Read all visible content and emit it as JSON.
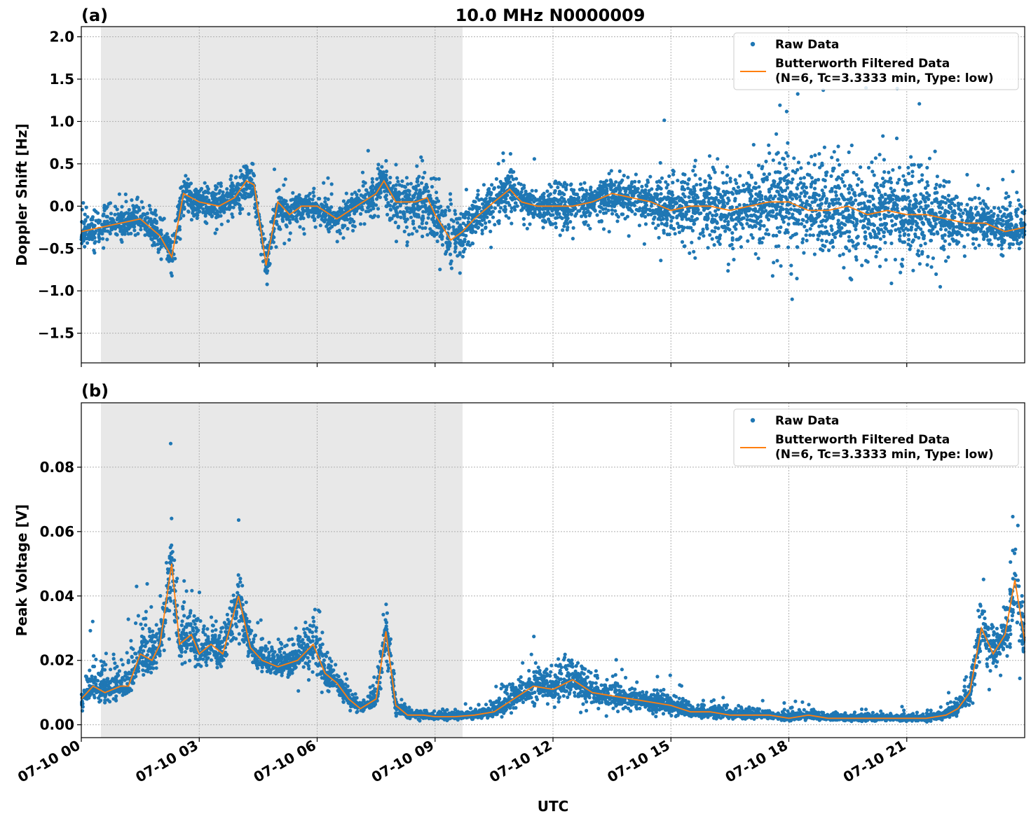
{
  "figure": {
    "title": "10.0 MHz N0000009",
    "xlabel": "UTC",
    "x_ticks": [
      "07-10 00",
      "07-10 03",
      "07-10 06",
      "07-10 09",
      "07-10 12",
      "07-10 15",
      "07-10 18",
      "07-10 21"
    ],
    "x_tick_hours": [
      0,
      3,
      6,
      9,
      12,
      15,
      18,
      21
    ],
    "xlim_hours": [
      0,
      24
    ],
    "shaded_region_hours": [
      0.5,
      9.7
    ],
    "colors": {
      "raw": "#1f77b4",
      "filtered": "#ff7f0e",
      "shade": "#e8e8e8"
    }
  },
  "chart_data": [
    {
      "type": "scatter",
      "panel_label": "(a)",
      "ylabel": "Doppler Shift [Hz]",
      "ylim": [
        -1.85,
        2.12
      ],
      "y_ticks": [
        2.0,
        1.5,
        1.0,
        0.5,
        0.0,
        -0.5,
        -1.0,
        -1.5
      ],
      "y_tick_labels": [
        "2.0",
        "1.5",
        "1.0",
        "0.5",
        "0.0",
        "−0.5",
        "−1.0",
        "−1.5"
      ],
      "grid": true,
      "legend": {
        "placement": "top-right",
        "raw_label": "Raw Data",
        "filtered_label_line1": "Butterworth Filtered Data",
        "filtered_label_line2": "(N=6, Tc=3.3333 min, Type: low)"
      },
      "series": [
        {
          "name": "Butterworth Filtered Data",
          "x_hours": [
            0,
            0.5,
            1,
            1.5,
            2,
            2.3,
            2.6,
            3,
            3.5,
            3.9,
            4.2,
            4.4,
            4.7,
            5,
            5.3,
            5.6,
            6,
            6.5,
            7,
            7.5,
            7.7,
            8,
            8.5,
            8.8,
            9,
            9.4,
            9.7,
            10,
            10.5,
            10.9,
            11.2,
            11.6,
            12,
            12.5,
            13,
            13.5,
            14,
            14.5,
            15,
            15.5,
            16,
            16.5,
            17,
            17.5,
            18,
            18.5,
            19,
            19.5,
            20,
            20.5,
            21,
            21.5,
            22,
            22.5,
            23,
            23.5,
            24
          ],
          "y": [
            -0.3,
            -0.25,
            -0.2,
            -0.15,
            -0.35,
            -0.6,
            0.15,
            0.05,
            0.0,
            0.1,
            0.3,
            0.25,
            -0.7,
            0.05,
            -0.1,
            0.0,
            0.0,
            -0.15,
            0.0,
            0.15,
            0.3,
            0.05,
            0.05,
            0.1,
            -0.1,
            -0.4,
            -0.3,
            -0.15,
            0.05,
            0.2,
            0.05,
            0.0,
            0.0,
            0.0,
            0.05,
            0.15,
            0.1,
            0.05,
            -0.05,
            0.0,
            0.0,
            -0.05,
            0.0,
            0.05,
            0.05,
            -0.05,
            -0.05,
            0.0,
            -0.1,
            -0.05,
            -0.1,
            -0.1,
            -0.15,
            -0.2,
            -0.2,
            -0.3,
            -0.25
          ]
        },
        {
          "name": "Raw Data",
          "x_hours": [
            0,
            0.5,
            1,
            1.5,
            2,
            2.3,
            2.6,
            3,
            3.5,
            3.9,
            4.2,
            4.4,
            4.7,
            5,
            5.3,
            5.6,
            6,
            6.5,
            7,
            7.5,
            7.7,
            8,
            8.5,
            8.8,
            9,
            9.4,
            9.7,
            10,
            10.5,
            10.9,
            11.2,
            11.6,
            12,
            12.5,
            13,
            13.5,
            14,
            14.5,
            15,
            15.5,
            16,
            16.5,
            17,
            17.5,
            18,
            18.5,
            19,
            19.5,
            20,
            20.5,
            21,
            21.5,
            22,
            22.5,
            23,
            23.5,
            24
          ],
          "y_min": [
            -0.7,
            -0.6,
            -0.5,
            -0.5,
            -0.8,
            -1.1,
            -0.4,
            -0.45,
            -0.4,
            -0.3,
            -0.2,
            -0.3,
            -1.2,
            -0.5,
            -0.5,
            -0.5,
            -0.4,
            -0.55,
            -0.5,
            -0.4,
            -0.3,
            -0.8,
            -0.8,
            -0.8,
            -0.9,
            -0.95,
            -0.9,
            -0.7,
            -0.5,
            -0.35,
            -0.4,
            -0.4,
            -0.5,
            -0.5,
            -0.4,
            -0.4,
            -0.5,
            -0.5,
            -0.9,
            -1.0,
            -1.0,
            -1.0,
            -1.0,
            -1.1,
            -1.2,
            -1.1,
            -1.1,
            -1.1,
            -1.2,
            -1.2,
            -1.3,
            -1.2,
            -0.9,
            -0.8,
            -0.7,
            -0.7,
            -0.6
          ],
          "y_max": [
            0.3,
            0.2,
            0.25,
            0.3,
            0.2,
            -0.1,
            0.6,
            0.5,
            0.45,
            0.65,
            0.9,
            0.8,
            -0.2,
            0.5,
            0.35,
            0.3,
            0.3,
            0.2,
            0.4,
            0.6,
            0.8,
            0.8,
            0.85,
            0.9,
            0.7,
            0.3,
            0.4,
            0.4,
            0.55,
            0.7,
            0.5,
            0.45,
            0.45,
            0.5,
            0.5,
            0.65,
            0.6,
            0.6,
            0.9,
            1.0,
            1.0,
            1.0,
            1.0,
            1.1,
            1.3,
            1.2,
            1.2,
            1.2,
            1.1,
            1.1,
            1.1,
            1.0,
            0.8,
            0.6,
            0.5,
            0.4,
            0.3
          ]
        }
      ]
    },
    {
      "type": "scatter",
      "panel_label": "(b)",
      "ylabel": "Peak Voltage [V]",
      "ylim": [
        -0.004,
        0.1
      ],
      "y_ticks": [
        0.08,
        0.06,
        0.04,
        0.02,
        0.0
      ],
      "y_tick_labels": [
        "0.08",
        "0.06",
        "0.04",
        "0.02",
        "0.00"
      ],
      "grid": true,
      "legend": {
        "placement": "top-right",
        "raw_label": "Raw Data",
        "filtered_label_line1": "Butterworth Filtered Data",
        "filtered_label_line2": "(N=6, Tc=3.3333 min, Type: low)"
      },
      "series": [
        {
          "name": "Butterworth Filtered Data",
          "x_hours": [
            0,
            0.3,
            0.6,
            1,
            1.2,
            1.5,
            1.8,
            2,
            2.3,
            2.5,
            2.8,
            3,
            3.3,
            3.6,
            4,
            4.3,
            4.6,
            5,
            5.5,
            5.9,
            6.2,
            6.5,
            6.8,
            7.1,
            7.5,
            7.75,
            8,
            8.3,
            8.7,
            9,
            9.5,
            10,
            10.5,
            11,
            11.5,
            12,
            12.5,
            13,
            13.5,
            14,
            14.5,
            15,
            15.5,
            16,
            16.5,
            17,
            17.5,
            18,
            18.5,
            19,
            19.5,
            20,
            20.5,
            21,
            21.5,
            22,
            22.3,
            22.6,
            22.9,
            23.2,
            23.5,
            23.75,
            24
          ],
          "y": [
            0.008,
            0.012,
            0.01,
            0.012,
            0.012,
            0.022,
            0.02,
            0.025,
            0.05,
            0.025,
            0.028,
            0.022,
            0.025,
            0.022,
            0.04,
            0.024,
            0.02,
            0.018,
            0.02,
            0.025,
            0.016,
            0.013,
            0.008,
            0.005,
            0.008,
            0.029,
            0.006,
            0.003,
            0.003,
            0.0025,
            0.0025,
            0.003,
            0.004,
            0.008,
            0.012,
            0.011,
            0.014,
            0.01,
            0.009,
            0.008,
            0.007,
            0.006,
            0.004,
            0.004,
            0.003,
            0.003,
            0.003,
            0.002,
            0.003,
            0.002,
            0.002,
            0.002,
            0.002,
            0.002,
            0.002,
            0.003,
            0.005,
            0.01,
            0.03,
            0.022,
            0.028,
            0.045,
            0.026
          ]
        },
        {
          "name": "Raw Data",
          "x_hours": [
            0,
            0.3,
            0.6,
            1,
            1.2,
            1.5,
            1.8,
            2,
            2.3,
            2.5,
            2.8,
            3,
            3.3,
            3.6,
            4,
            4.3,
            4.6,
            5,
            5.5,
            5.9,
            6.2,
            6.5,
            6.8,
            7.1,
            7.5,
            7.75,
            8,
            8.3,
            8.7,
            9,
            9.5,
            10,
            10.5,
            11,
            11.5,
            12,
            12.5,
            13,
            13.5,
            14,
            14.5,
            15,
            15.5,
            16,
            16.5,
            17,
            17.5,
            18,
            18.5,
            19,
            19.5,
            20,
            20.5,
            21,
            21.5,
            22,
            22.3,
            22.6,
            22.9,
            23.2,
            23.5,
            23.75,
            24
          ],
          "y_min": [
            0.002,
            0.004,
            0.003,
            0.005,
            0.005,
            0.01,
            0.01,
            0.012,
            0.015,
            0.014,
            0.015,
            0.014,
            0.014,
            0.013,
            0.018,
            0.014,
            0.011,
            0.01,
            0.01,
            0.011,
            0.008,
            0.006,
            0.003,
            0.002,
            0.003,
            0.01,
            0.001,
            0.001,
            0.001,
            0.001,
            0.001,
            0.001,
            0.001,
            0.002,
            0.004,
            0.004,
            0.004,
            0.003,
            0.002,
            0.002,
            0.002,
            0.001,
            0.001,
            0.001,
            0.001,
            0.001,
            0.001,
            0.0005,
            0.001,
            0.0005,
            0.0005,
            0.0005,
            0.0005,
            0.0005,
            0.0005,
            0.001,
            0.002,
            0.004,
            0.01,
            0.008,
            0.01,
            0.015,
            0.01
          ],
          "y_max": [
            0.016,
            0.03,
            0.025,
            0.035,
            0.04,
            0.05,
            0.045,
            0.045,
            0.085,
            0.05,
            0.05,
            0.045,
            0.045,
            0.04,
            0.058,
            0.04,
            0.035,
            0.032,
            0.035,
            0.05,
            0.03,
            0.025,
            0.018,
            0.012,
            0.018,
            0.055,
            0.012,
            0.006,
            0.006,
            0.005,
            0.006,
            0.006,
            0.012,
            0.02,
            0.025,
            0.025,
            0.028,
            0.022,
            0.02,
            0.016,
            0.015,
            0.014,
            0.01,
            0.009,
            0.008,
            0.008,
            0.007,
            0.006,
            0.008,
            0.006,
            0.005,
            0.005,
            0.005,
            0.005,
            0.005,
            0.008,
            0.012,
            0.022,
            0.05,
            0.04,
            0.045,
            0.07,
            0.045
          ]
        }
      ]
    }
  ]
}
